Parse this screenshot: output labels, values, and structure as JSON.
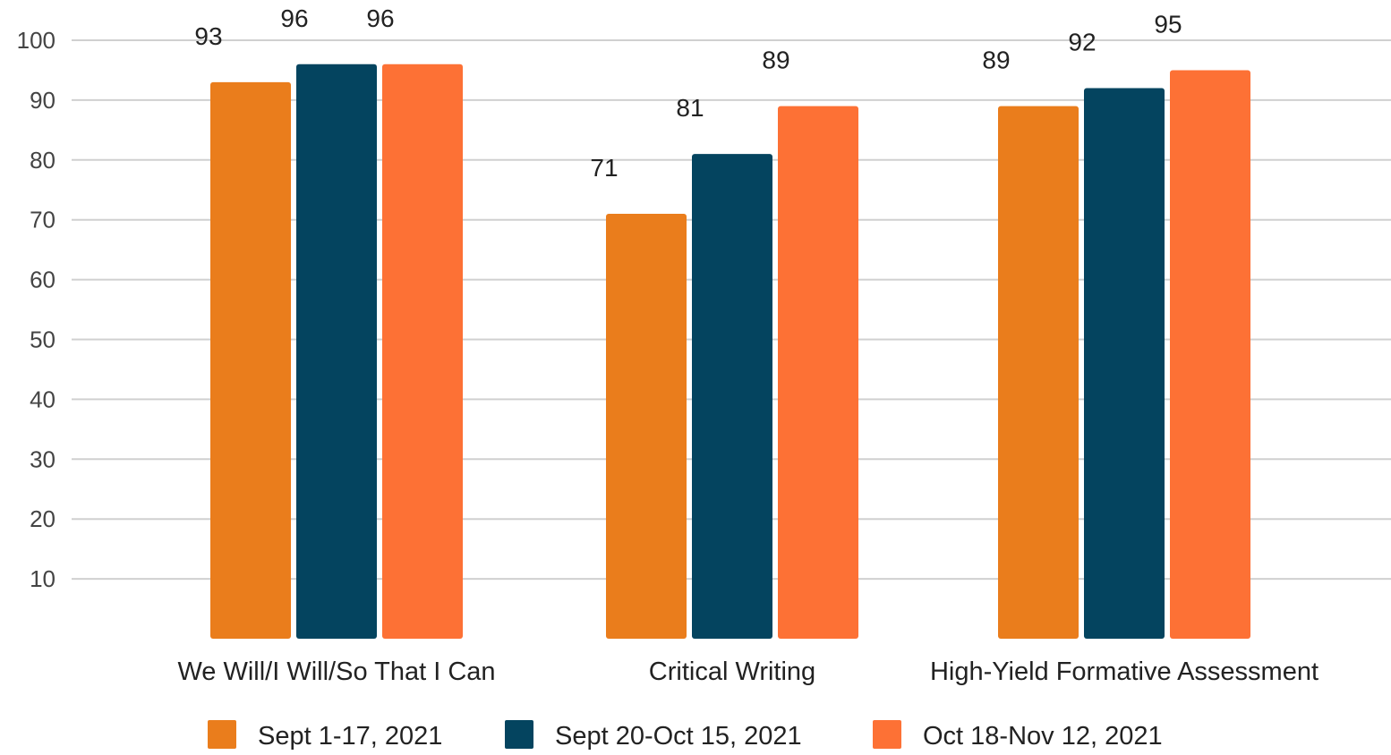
{
  "chart_data": {
    "type": "bar",
    "title": "",
    "xlabel": "",
    "ylabel": "",
    "categories": [
      "We Will/I Will/So That I Can",
      "Critical Writing",
      "High-Yield Formative Assessment"
    ],
    "series": [
      {
        "name": "Sept 1-17, 2021",
        "color": "#ea7d1c",
        "values": [
          93,
          71,
          89
        ]
      },
      {
        "name": "Sept 20-Oct 15, 2021",
        "color": "#04445f",
        "values": [
          96,
          81,
          92
        ]
      },
      {
        "name": "Oct 18-Nov 12, 2021",
        "color": "#fd7135",
        "values": [
          96,
          89,
          95
        ]
      }
    ],
    "y_ticks": [
      "10",
      "20",
      "30",
      "40",
      "50",
      "60",
      "70",
      "80",
      "90",
      "100"
    ],
    "ylim": [
      0,
      100
    ],
    "grid": true,
    "data_labels": true,
    "legend_position": "bottom",
    "colors": {
      "grid": "#d0d0d0",
      "tick_text": "#444444",
      "label_text": "#222222"
    }
  }
}
